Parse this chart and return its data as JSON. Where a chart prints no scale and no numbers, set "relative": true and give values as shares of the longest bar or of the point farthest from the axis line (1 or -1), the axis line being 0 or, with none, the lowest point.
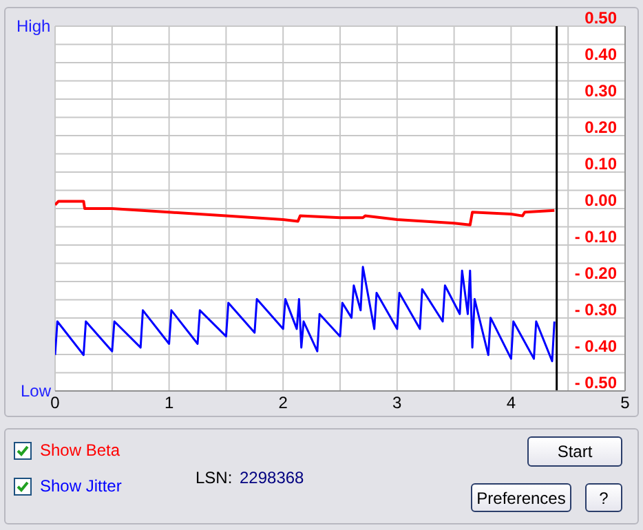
{
  "chart_data": [
    {
      "type": "line",
      "x": [
        0,
        0.03,
        0.25,
        0.26,
        0.5,
        1.0,
        1.5,
        2.0,
        2.13,
        2.15,
        2.5,
        2.7,
        2.72,
        3.0,
        3.5,
        3.64,
        3.66,
        4.0,
        4.1,
        4.12,
        4.38
      ],
      "series": [
        {
          "name": "Show Beta",
          "color": "#ff0000",
          "values": [
            0.01,
            0.02,
            0.02,
            0.0,
            0.0,
            -0.01,
            -0.02,
            -0.03,
            -0.035,
            -0.02,
            -0.025,
            -0.025,
            -0.02,
            -0.03,
            -0.04,
            -0.045,
            -0.01,
            -0.015,
            -0.02,
            -0.01,
            -0.005
          ]
        }
      ],
      "xlim": [
        0,
        5
      ],
      "xticks": [
        0,
        {
          "value": 0.5,
          "label": null
        },
        1,
        {
          "value": 1.5,
          "label": null
        },
        2,
        {
          "value": 2.5,
          "label": null
        },
        3,
        {
          "value": 3.5,
          "label": null
        },
        4,
        {
          "value": 4.5,
          "label": null
        },
        5
      ],
      "ylim": [
        -0.5,
        0.5
      ],
      "yticks": [
        {
          "value": -0.5,
          "label": "- 0.50"
        },
        {
          "value": -0.45,
          "label": null
        },
        {
          "value": -0.4,
          "label": "- 0.40"
        },
        {
          "value": -0.35,
          "label": null
        },
        {
          "value": -0.3,
          "label": "- 0.30"
        },
        {
          "value": -0.25,
          "label": null
        },
        {
          "value": -0.2,
          "label": "- 0.20"
        },
        {
          "value": -0.15,
          "label": null
        },
        {
          "value": -0.1,
          "label": "- 0.10"
        },
        {
          "value": -0.05,
          "label": null
        },
        {
          "value": 0,
          "label": "0.00"
        },
        {
          "value": 0.05,
          "label": null
        },
        {
          "value": 0.1,
          "label": "0.10"
        },
        {
          "value": 0.15,
          "label": null
        },
        {
          "value": 0.2,
          "label": "0.20"
        },
        {
          "value": 0.25,
          "label": null
        },
        {
          "value": 0.3,
          "label": "0.30"
        },
        {
          "value": 0.35,
          "label": null
        },
        {
          "value": 0.4,
          "label": "0.40"
        },
        {
          "value": 0.45,
          "label": null
        },
        {
          "value": 0.5,
          "label": "0.50"
        }
      ],
      "ref_lines": [
        {
          "axis": "x",
          "value": 4.4,
          "color": "#000000"
        }
      ],
      "grid": true,
      "legend": "bottom left",
      "annotations": [
        "LSN:",
        "2298368",
        "Start",
        "Preferences",
        "?"
      ]
    },
    {
      "type": "line",
      "relative": true,
      "x": [
        0,
        0.02,
        0.25,
        0.27,
        0.5,
        0.52,
        0.75,
        0.77,
        1,
        1.02,
        1.25,
        1.27,
        1.5,
        1.52,
        1.75,
        1.77,
        2,
        2.02,
        2.12,
        2.14,
        2.16,
        2.18,
        2.3,
        2.32,
        2.5,
        2.52,
        2.6,
        2.62,
        2.68,
        2.7,
        2.8,
        2.82,
        3,
        3.02,
        3.2,
        3.22,
        3.4,
        3.42,
        3.55,
        3.57,
        3.62,
        3.64,
        3.66,
        3.68,
        3.8,
        3.82,
        4,
        4.02,
        4.2,
        4.22,
        4.36,
        4.38
      ],
      "series": [
        {
          "name": "Show Jitter",
          "color": "#0000ff",
          "values": [
            0.29,
            0.56,
            0.29,
            0.56,
            0.32,
            0.56,
            0.35,
            0.65,
            0.38,
            0.65,
            0.38,
            0.65,
            0.44,
            0.71,
            0.47,
            0.74,
            0.5,
            0.74,
            0.5,
            0.74,
            0.35,
            0.56,
            0.32,
            0.62,
            0.44,
            0.71,
            0.59,
            0.85,
            0.65,
            1.0,
            0.5,
            0.79,
            0.5,
            0.79,
            0.5,
            0.82,
            0.56,
            0.85,
            0.62,
            0.97,
            0.62,
            0.97,
            0.35,
            0.74,
            0.29,
            0.59,
            0.26,
            0.56,
            0.26,
            0.56,
            0.24,
            0.56
          ]
        }
      ],
      "xlim": [
        0,
        5
      ],
      "legend": "bottom left",
      "annotations": [
        "High",
        "Low"
      ]
    }
  ]
}
